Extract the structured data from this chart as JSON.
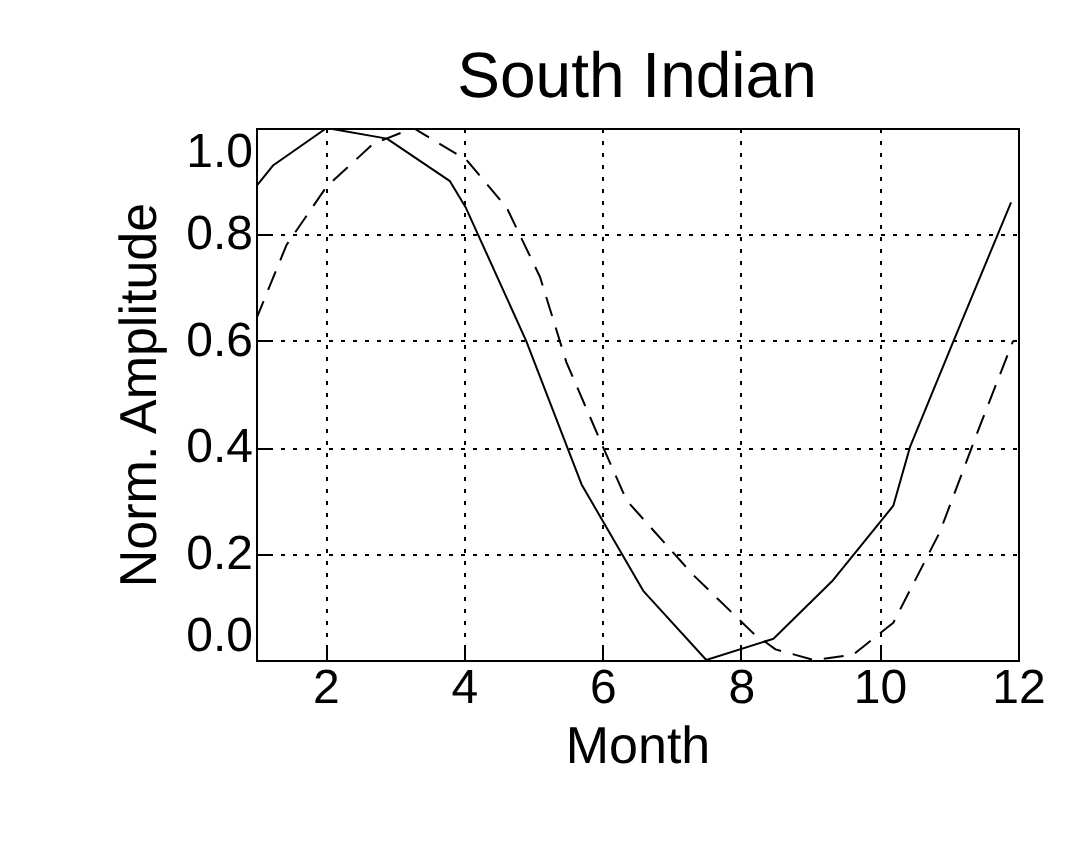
{
  "chart_data": {
    "type": "line",
    "title": "South Indian",
    "xlabel": "Month",
    "ylabel": "Norm. Amplitude",
    "xlim": [
      1,
      12
    ],
    "xticks": [
      2,
      4,
      6,
      8,
      10,
      12
    ],
    "ylim": [
      0,
      1
    ],
    "yticks": [
      {
        "value": 0,
        "label": "0.0"
      },
      0.2,
      0.4,
      0.6,
      0.8,
      {
        "value": 1,
        "label": "1.0"
      }
    ],
    "grid": true,
    "series": [
      {
        "color": "#000000",
        "line_style": "solid",
        "x": [
          1.0,
          1.25,
          2.02,
          2.89,
          3.8,
          4.03,
          4.9,
          5.7,
          6.59,
          7.5,
          8.47,
          9.33,
          10.2,
          10.44,
          11.07,
          11.9
        ],
        "values": [
          0.89,
          0.93,
          1.0,
          0.98,
          0.9,
          0.85,
          0.6,
          0.33,
          0.13,
          0.0,
          0.04,
          0.15,
          0.29,
          0.4,
          0.6,
          0.86
        ]
      },
      {
        "color": "#000000",
        "line_style": "dashed",
        "x": [
          1.0,
          1.44,
          2.02,
          2.69,
          3.27,
          4.04,
          4.62,
          5.1,
          5.48,
          6.01,
          6.35,
          7.31,
          8.18,
          8.5,
          9.05,
          9.62,
          10.2,
          10.87,
          11.45,
          11.93
        ],
        "values": [
          0.64,
          0.78,
          0.89,
          0.97,
          1.0,
          0.94,
          0.85,
          0.72,
          0.56,
          0.4,
          0.3,
          0.16,
          0.05,
          0.02,
          0.0,
          0.01,
          0.07,
          0.24,
          0.44,
          0.6
        ]
      }
    ]
  }
}
